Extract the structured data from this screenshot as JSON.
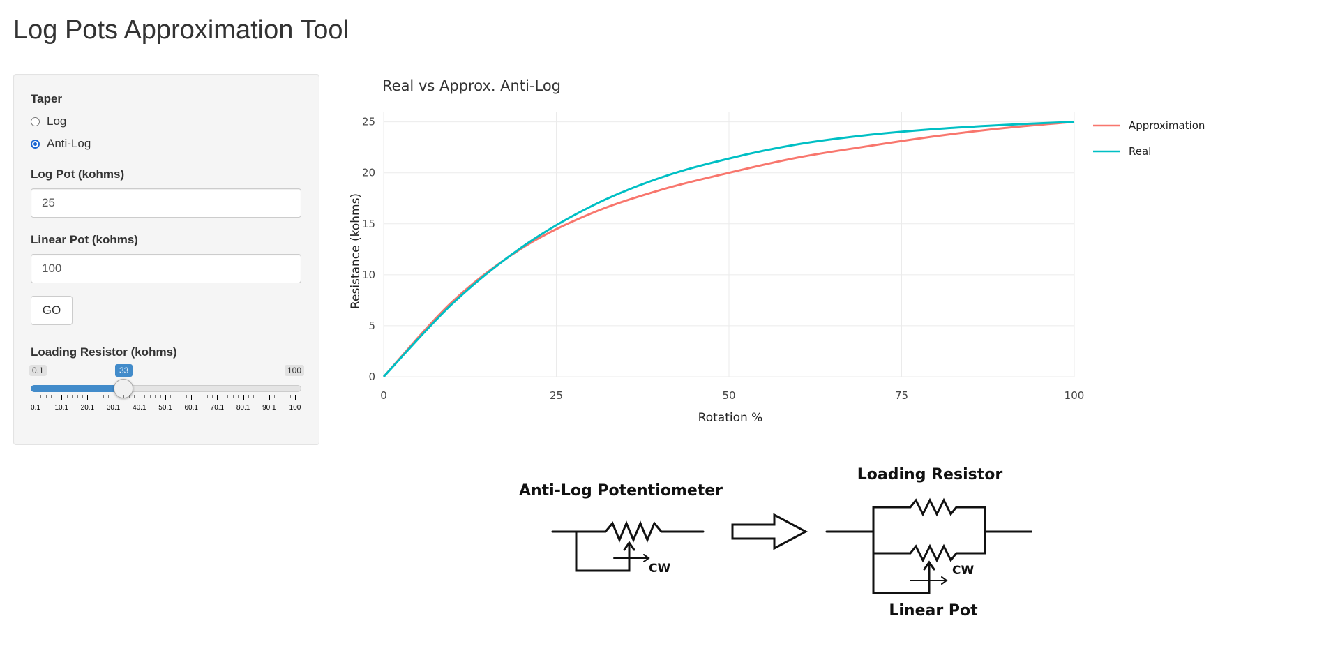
{
  "app": {
    "title": "Log Pots Approximation Tool"
  },
  "sidebar": {
    "taper": {
      "label": "Taper",
      "options": [
        "Log",
        "Anti-Log"
      ],
      "selected": "Anti-Log"
    },
    "log_pot": {
      "label": "Log Pot (kohms)",
      "value": "25"
    },
    "linear_pot": {
      "label": "Linear Pot (kohms)",
      "value": "100"
    },
    "go_label": "GO",
    "loading_resistor": {
      "label": "Loading Resistor (kohms)",
      "min": "0.1",
      "max": "100",
      "value": "33",
      "ticks": [
        "0.1",
        "10.1",
        "20.1",
        "30.1",
        "40.1",
        "50.1",
        "60.1",
        "70.1",
        "80.1",
        "90.1",
        "100"
      ]
    }
  },
  "chart_data": {
    "type": "line",
    "title": "Real vs Approx. Anti-Log",
    "xlabel": "Rotation %",
    "ylabel": "Resistance (kohms)",
    "xlim": [
      0,
      100
    ],
    "ylim": [
      0,
      26
    ],
    "xticks": [
      0,
      25,
      50,
      75,
      100
    ],
    "yticks": [
      0,
      5,
      10,
      15,
      20,
      25
    ],
    "grid": true,
    "legend_position": "right",
    "x": [
      0,
      10,
      20,
      30,
      40,
      50,
      60,
      70,
      80,
      90,
      100
    ],
    "series": [
      {
        "name": "Approximation",
        "color": "#F8766D",
        "values": [
          0,
          7.4,
          12.6,
          16.0,
          18.3,
          20.0,
          21.5,
          22.6,
          23.6,
          24.4,
          25.0
        ]
      },
      {
        "name": "Real",
        "color": "#00BFC4",
        "values": [
          0,
          7.2,
          12.7,
          16.7,
          19.5,
          21.4,
          22.8,
          23.7,
          24.3,
          24.7,
          25.0
        ]
      }
    ]
  },
  "diagram": {
    "left_title": "Anti-Log Potentiometer",
    "cw_label": "CW",
    "right_title": "Loading Resistor",
    "right_bottom": "Linear Pot"
  }
}
